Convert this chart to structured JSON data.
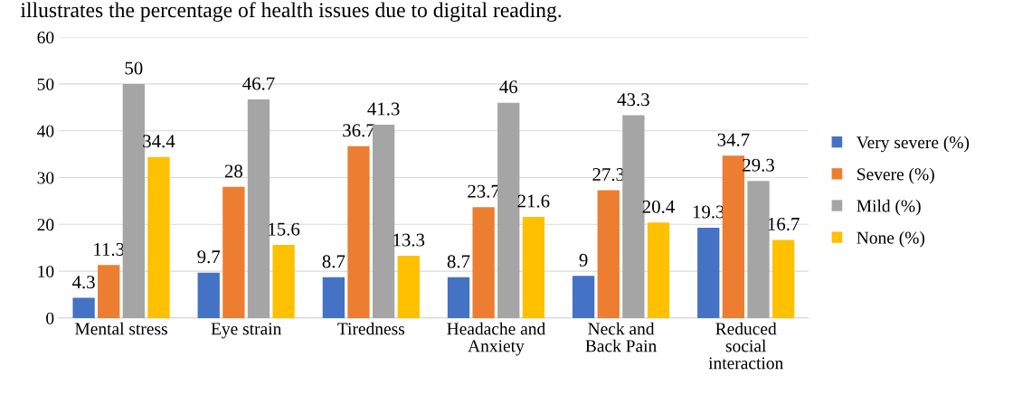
{
  "chart_data": {
    "type": "bar",
    "categories": [
      "Mental stress",
      "Eye strain",
      "Tiredness",
      "Headache and\nAnxiety",
      "Neck and\nBack Pain",
      "Reduced\nsocial\ninteraction"
    ],
    "series": [
      {
        "name": "Very severe (%)",
        "color": "#4472c4",
        "values": [
          4.3,
          9.7,
          8.7,
          8.7,
          9,
          19.3
        ]
      },
      {
        "name": "Severe (%)",
        "color": "#ed7d31",
        "values": [
          11.3,
          28,
          36.7,
          23.7,
          27.3,
          34.7
        ]
      },
      {
        "name": "Mild (%)",
        "color": "#a5a5a5",
        "values": [
          50,
          46.7,
          41.3,
          46,
          43.3,
          29.3
        ]
      },
      {
        "name": "None (%)",
        "color": "#ffc000",
        "values": [
          34.4,
          15.6,
          13.3,
          21.6,
          20.4,
          16.7
        ]
      }
    ],
    "ylim": [
      0,
      60
    ],
    "yticks": [
      0,
      10,
      20,
      30,
      40,
      50,
      60
    ],
    "grid": "y",
    "legend": "right",
    "data_labels": true,
    "annotations": [
      "illustrates the percentage of health issues due to digital reading."
    ]
  }
}
